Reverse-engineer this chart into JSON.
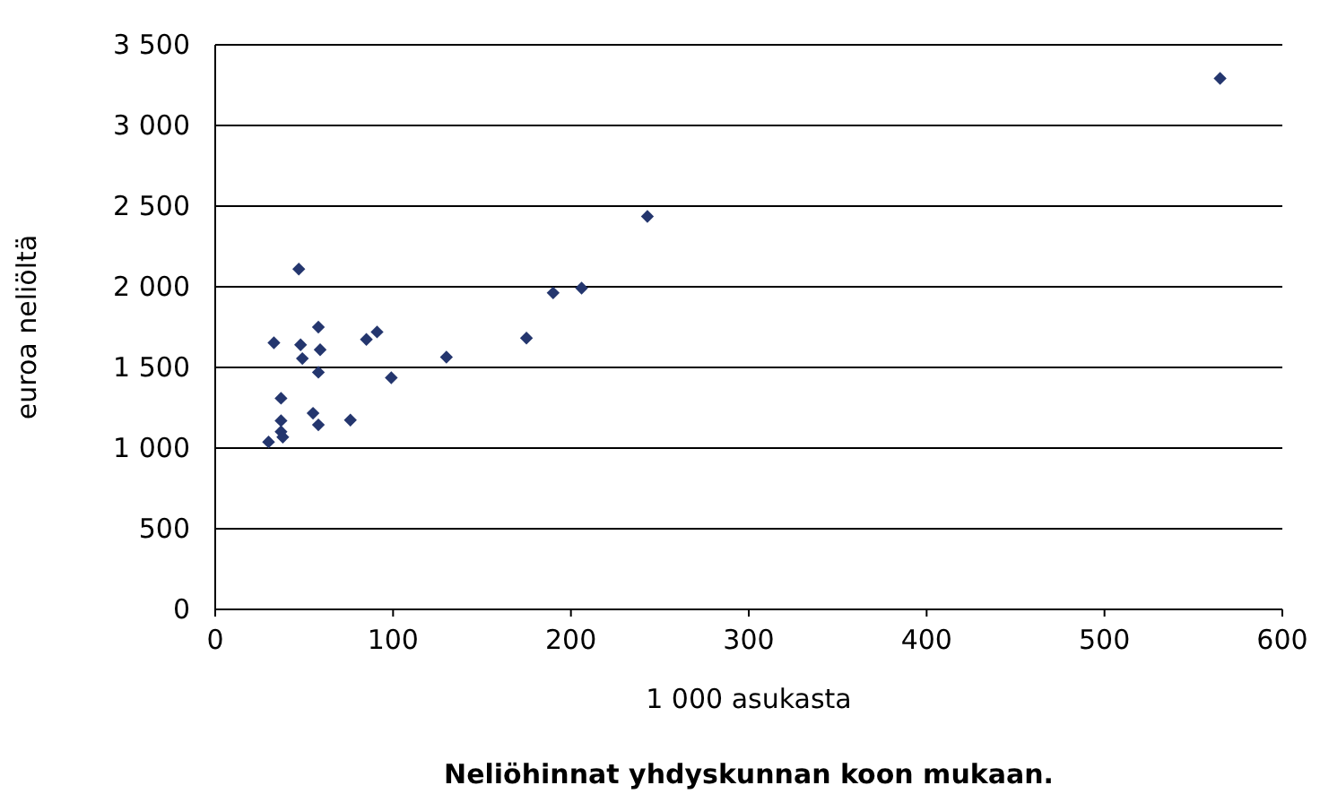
{
  "chart_data": {
    "type": "scatter",
    "title": "Neliöhinnat yhdyskunnan koon mukaan.",
    "xlabel": "1 000 asukasta",
    "ylabel": "euroa neliöltä",
    "xlim": [
      0,
      600
    ],
    "xticks": [
      0,
      100,
      200,
      300,
      400,
      500,
      600
    ],
    "ylim": [
      0,
      3500
    ],
    "yticks": [
      {
        "value": 0,
        "label": "0"
      },
      {
        "value": 500,
        "label": "500"
      },
      {
        "value": 1000,
        "label": "1 000"
      },
      {
        "value": 1500,
        "label": "1 500"
      },
      {
        "value": 2000,
        "label": "2 000"
      },
      {
        "value": 2500,
        "label": "2 500"
      },
      {
        "value": 3000,
        "label": "3 000"
      },
      {
        "value": 3500,
        "label": "3 500"
      }
    ],
    "grid": "y",
    "marker": "diamond",
    "series": [
      {
        "color": "#24366e",
        "x": [
          565,
          243,
          206,
          190,
          175,
          130,
          99,
          91,
          85,
          47,
          58,
          59,
          48,
          49,
          58,
          33,
          37,
          37,
          55,
          58,
          76,
          37,
          38,
          30
        ],
        "values": [
          3292,
          2436,
          1992,
          1962,
          1682,
          1564,
          1436,
          1720,
          1674,
          2110,
          1750,
          1610,
          1640,
          1555,
          1470,
          1653,
          1309,
          1170,
          1216,
          1144,
          1174,
          1102,
          1068,
          1038
        ]
      }
    ]
  }
}
